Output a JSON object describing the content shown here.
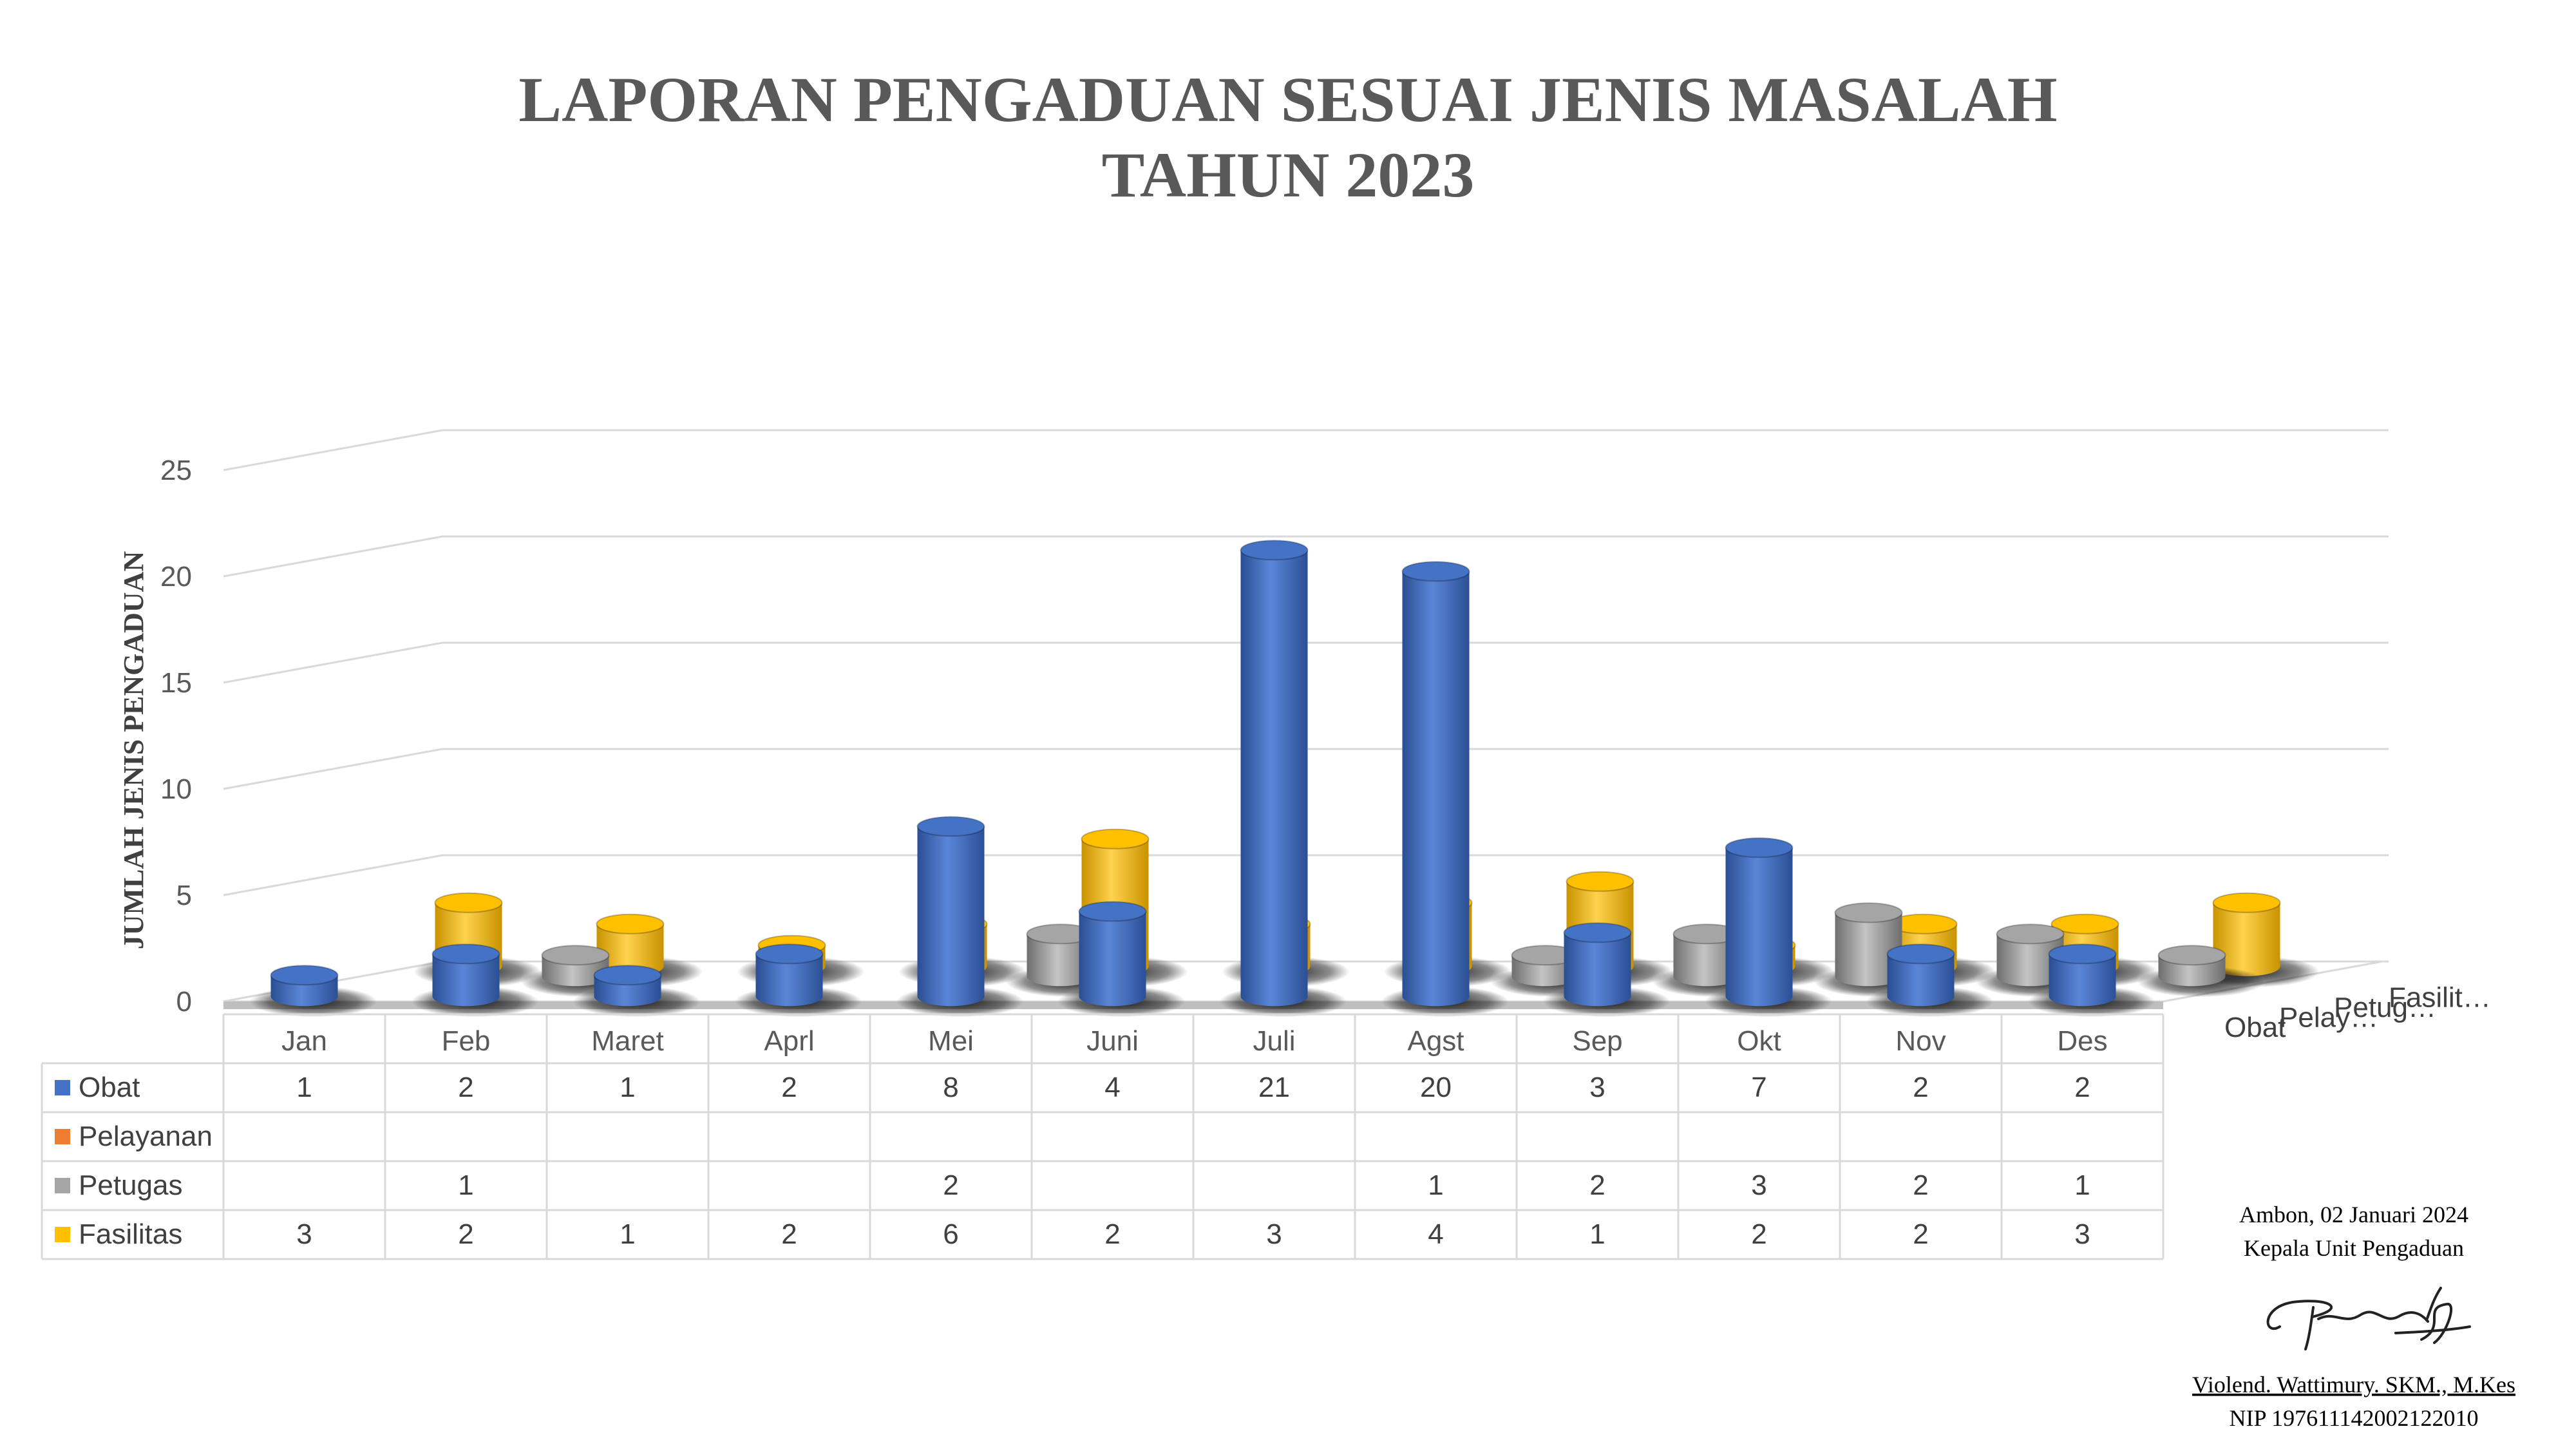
{
  "chart_data": {
    "type": "bar",
    "title": "LAPORAN PENGADUAN SESUAI JENIS MASALAH",
    "subtitle": "TAHUN 2023",
    "ylabel": "JUMLAH JENIS PENGADUAN",
    "xlabel": "",
    "ylim": [
      0,
      25
    ],
    "yticks": [
      0,
      5,
      10,
      15,
      20,
      25
    ],
    "grid": true,
    "legend": "data-table",
    "categories": [
      "Jan",
      "Feb",
      "Maret",
      "Aprl",
      "Mei",
      "Juni",
      "Juli",
      "Agst",
      "Sep",
      "Okt",
      "Nov",
      "Des"
    ],
    "series": [
      {
        "name": "Obat",
        "depth_label": "Obat",
        "color": "#4472C4",
        "values": [
          1,
          2,
          1,
          2,
          8,
          4,
          21,
          20,
          3,
          7,
          2,
          2
        ]
      },
      {
        "name": "Pelayanan",
        "depth_label": "Pelay…",
        "color": "#ED7D31",
        "values": [
          null,
          null,
          null,
          null,
          null,
          null,
          null,
          null,
          null,
          null,
          null,
          null
        ]
      },
      {
        "name": "Petugas",
        "depth_label": "Petug…",
        "color": "#A5A5A5",
        "values": [
          null,
          1,
          null,
          null,
          2,
          null,
          null,
          1,
          2,
          3,
          2,
          1
        ]
      },
      {
        "name": "Fasilitas",
        "depth_label": "Fasilit…",
        "color": "#FFC000",
        "values": [
          3,
          2,
          1,
          2,
          6,
          2,
          3,
          4,
          1,
          2,
          2,
          3
        ]
      }
    ]
  },
  "signature": {
    "place_date": "Ambon, 02 Januari 2024",
    "position": "Kepala Unit Pengaduan",
    "name": "Violend. Wattimury. SKM., M.Kes",
    "nip": "NIP 197611142002122010"
  }
}
